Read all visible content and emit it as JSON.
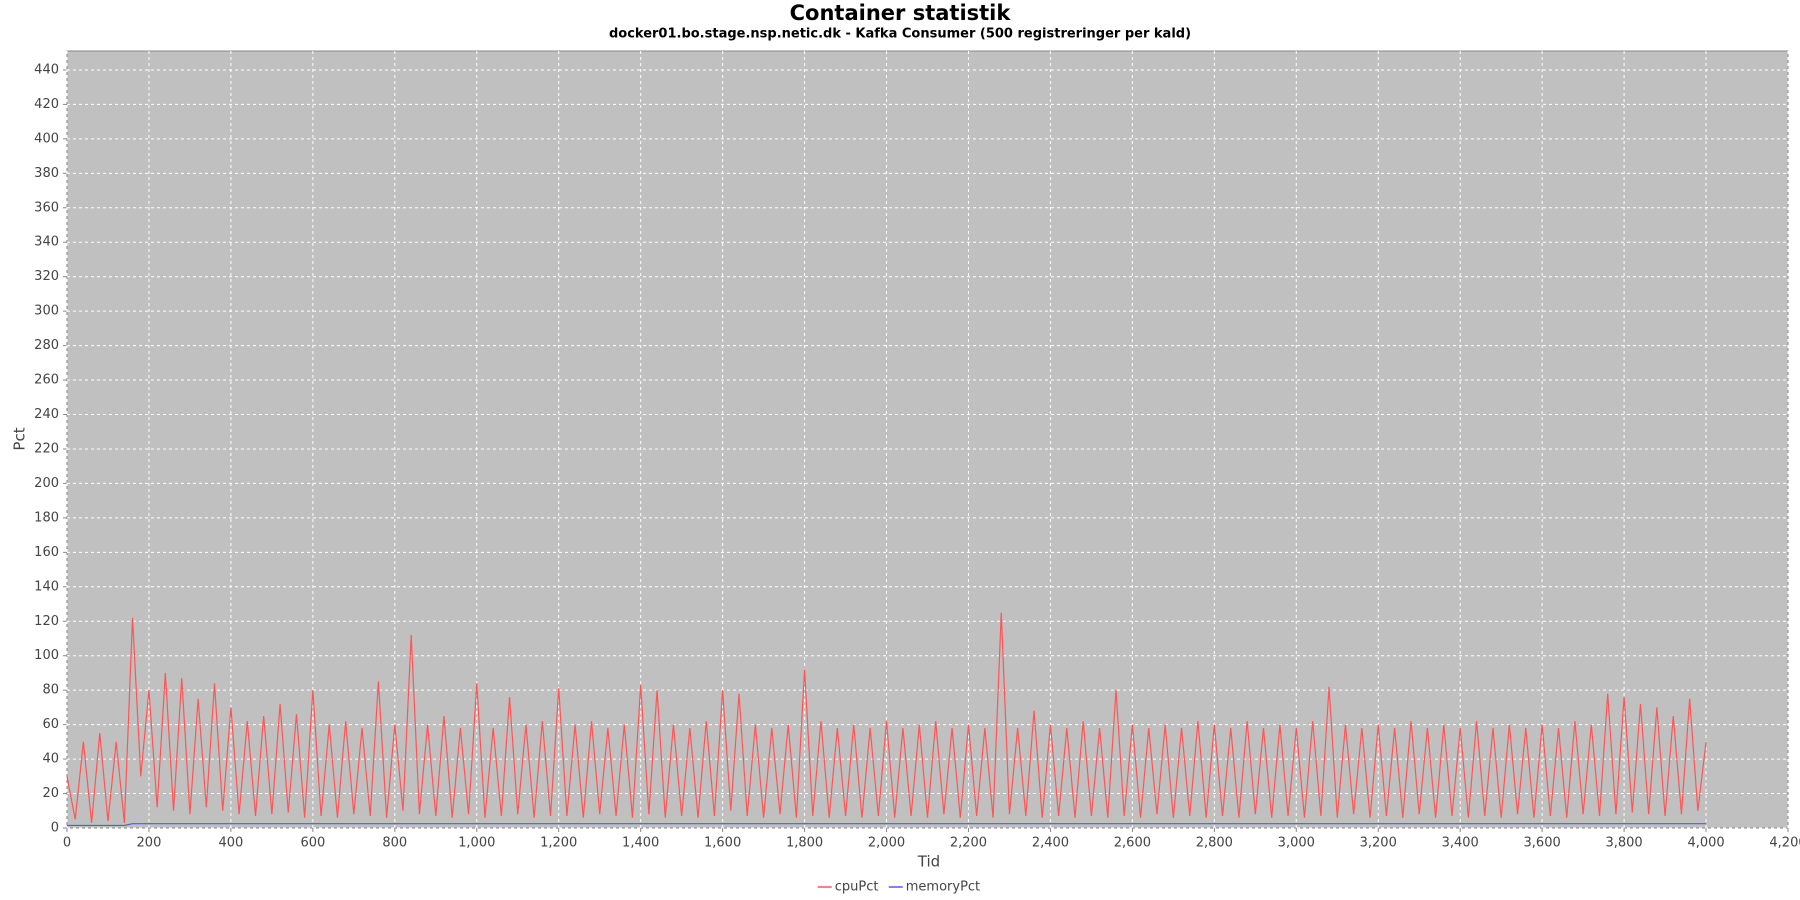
{
  "chart_data": {
    "type": "line",
    "title": "Container statistik",
    "subtitle": "docker01.bo.stage.nsp.netic.dk - Kafka Consumer (500 registreringer per kald)",
    "x_label": "Tid",
    "y_label": "Pct",
    "xlim": [
      0,
      4200
    ],
    "ylim": [
      0,
      451
    ],
    "xticks": [
      0,
      200,
      400,
      600,
      800,
      {
        "value": 1000,
        "label": "1,000"
      },
      {
        "value": 1200,
        "label": "1,200"
      },
      {
        "value": 1400,
        "label": "1,400"
      },
      {
        "value": 1600,
        "label": "1,600"
      },
      {
        "value": 1800,
        "label": "1,800"
      },
      {
        "value": 2000,
        "label": "2,000"
      },
      {
        "value": 2200,
        "label": "2,200"
      },
      {
        "value": 2400,
        "label": "2,400"
      },
      {
        "value": 2600,
        "label": "2,600"
      },
      {
        "value": 2800,
        "label": "2,800"
      },
      {
        "value": 3000,
        "label": "3,000"
      },
      {
        "value": 3200,
        "label": "3,200"
      },
      {
        "value": 3400,
        "label": "3,400"
      },
      {
        "value": 3600,
        "label": "3,600"
      },
      {
        "value": 3800,
        "label": "3,800"
      },
      {
        "value": 4000,
        "label": "4,000"
      },
      {
        "value": 4200,
        "label": "4,200"
      }
    ],
    "yticks": [
      0,
      20,
      40,
      60,
      80,
      100,
      120,
      140,
      160,
      180,
      200,
      220,
      240,
      260,
      280,
      300,
      320,
      340,
      360,
      380,
      400,
      420,
      440
    ],
    "grid": true,
    "legend": "bottom",
    "series": [
      {
        "name": "cpuPct",
        "color": "#ff5555",
        "x": [
          0,
          20,
          40,
          60,
          80,
          100,
          120,
          140,
          160,
          180,
          200,
          220,
          240,
          260,
          280,
          300,
          320,
          340,
          360,
          380,
          400,
          420,
          440,
          460,
          480,
          500,
          520,
          540,
          560,
          580,
          600,
          620,
          640,
          660,
          680,
          700,
          720,
          740,
          760,
          780,
          800,
          820,
          840,
          860,
          880,
          900,
          920,
          940,
          960,
          980,
          1000,
          1020,
          1040,
          1060,
          1080,
          1100,
          1120,
          1140,
          1160,
          1180,
          1200,
          1220,
          1240,
          1260,
          1280,
          1300,
          1320,
          1340,
          1360,
          1380,
          1400,
          1420,
          1440,
          1460,
          1480,
          1500,
          1520,
          1540,
          1560,
          1580,
          1600,
          1620,
          1640,
          1660,
          1680,
          1700,
          1720,
          1740,
          1760,
          1780,
          1800,
          1820,
          1840,
          1860,
          1880,
          1900,
          1920,
          1940,
          1960,
          1980,
          2000,
          2020,
          2040,
          2060,
          2080,
          2100,
          2120,
          2140,
          2160,
          2180,
          2200,
          2220,
          2240,
          2260,
          2280,
          2300,
          2320,
          2340,
          2360,
          2380,
          2400,
          2420,
          2440,
          2460,
          2480,
          2500,
          2520,
          2540,
          2560,
          2580,
          2600,
          2620,
          2640,
          2660,
          2680,
          2700,
          2720,
          2740,
          2760,
          2780,
          2800,
          2820,
          2840,
          2860,
          2880,
          2900,
          2920,
          2940,
          2960,
          2980,
          3000,
          3020,
          3040,
          3060,
          3080,
          3100,
          3120,
          3140,
          3160,
          3180,
          3200,
          3220,
          3240,
          3260,
          3280,
          3300,
          3320,
          3340,
          3360,
          3380,
          3400,
          3420,
          3440,
          3460,
          3480,
          3500,
          3520,
          3540,
          3560,
          3580,
          3600,
          3620,
          3640,
          3660,
          3680,
          3700,
          3720,
          3740,
          3760,
          3780,
          3800,
          3820,
          3840,
          3860,
          3880,
          3900,
          3920,
          3940,
          3960,
          3980,
          4000
        ],
        "values": [
          30,
          5,
          50,
          3,
          55,
          4,
          50,
          3,
          122,
          30,
          80,
          12,
          90,
          10,
          87,
          8,
          75,
          12,
          84,
          10,
          70,
          8,
          62,
          7,
          65,
          8,
          72,
          9,
          66,
          6,
          80,
          7,
          60,
          6,
          62,
          8,
          58,
          7,
          85,
          6,
          60,
          10,
          112,
          8,
          60,
          7,
          65,
          6,
          58,
          8,
          84,
          6,
          58,
          7,
          76,
          8,
          60,
          6,
          62,
          7,
          81,
          7,
          60,
          6,
          62,
          8,
          58,
          7,
          60,
          6,
          83,
          8,
          80,
          6,
          60,
          7,
          58,
          6,
          62,
          7,
          80,
          10,
          78,
          7,
          60,
          6,
          58,
          8,
          60,
          6,
          92,
          7,
          62,
          6,
          58,
          7,
          60,
          6,
          58,
          7,
          62,
          6,
          58,
          7,
          60,
          6,
          62,
          8,
          58,
          6,
          60,
          7,
          58,
          6,
          125,
          8,
          58,
          7,
          68,
          6,
          60,
          7,
          58,
          6,
          62,
          7,
          58,
          6,
          80,
          7,
          60,
          6,
          58,
          8,
          60,
          6,
          58,
          7,
          62,
          6,
          60,
          7,
          58,
          6,
          62,
          8,
          58,
          6,
          60,
          7,
          58,
          6,
          62,
          7,
          82,
          6,
          60,
          8,
          58,
          6,
          60,
          7,
          58,
          6,
          62,
          8,
          58,
          6,
          60,
          7,
          58,
          6,
          62,
          7,
          58,
          6,
          60,
          8,
          58,
          6,
          60,
          7,
          58,
          6,
          62,
          8,
          60,
          7,
          78,
          8,
          76,
          9,
          72,
          8,
          70,
          7,
          65,
          8,
          75,
          10,
          50
        ]
      },
      {
        "name": "memoryPct",
        "color": "#5555ff",
        "x": [
          0,
          140,
          160,
          4000
        ],
        "values": [
          1.5,
          1.5,
          2.5,
          2.5
        ]
      }
    ]
  }
}
